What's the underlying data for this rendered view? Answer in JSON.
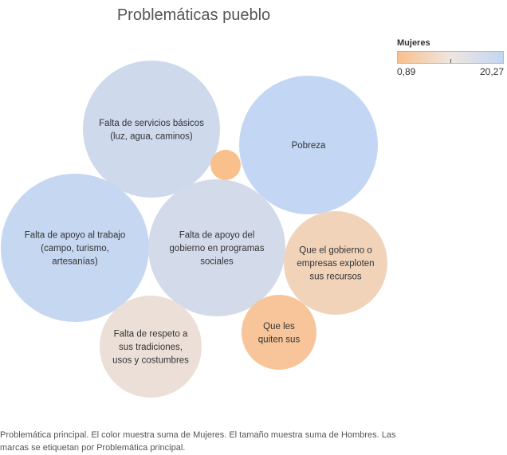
{
  "chart_data": {
    "type": "packed-bubble",
    "title": "Problemáticas pueblo",
    "color_measure": "Mujeres",
    "color_range": [
      0.89,
      20.27
    ],
    "legend": {
      "title": "Mujeres",
      "min_label": "0,89",
      "max_label": "20,27",
      "low_color": "#f9c08c",
      "high_color": "#c3d6f3",
      "placement": "top-right"
    },
    "bubbles": [
      {
        "label": [
          "Falta de servicios básicos",
          "(luz, agua, caminos)"
        ],
        "color_value": 17.5,
        "size": 33
      },
      {
        "label": [
          "Pobreza"
        ],
        "color_value": 20.27,
        "size": 34
      },
      {
        "label": [],
        "color_value": 0.89,
        "size": 1.6
      },
      {
        "label": [
          "Falta de apoyo al trabajo",
          "(campo, turismo,",
          "artesanías)"
        ],
        "color_value": 19.5,
        "size": 39
      },
      {
        "label": [
          "Falta de apoyo del",
          "gobierno en programas",
          "sociales"
        ],
        "color_value": 16.5,
        "size": 33
      },
      {
        "label": [
          "Que el gobierno o",
          "empresas exploten",
          "sus recursos"
        ],
        "color_value": 6.5,
        "size": 19
      },
      {
        "label": [
          "Falta de respeto a",
          "sus tradiciones,",
          "usos y costumbres"
        ],
        "color_value": 10,
        "size": 18
      },
      {
        "label": [
          "Que les",
          "quiten sus"
        ],
        "color_value": 2.5,
        "size": 10
      }
    ]
  },
  "caption": "Problemática principal.  El color muestra suma de Mujeres.  El tamaño muestra suma de Hombres.  Las marcas se etiquetan por Problemática principal."
}
